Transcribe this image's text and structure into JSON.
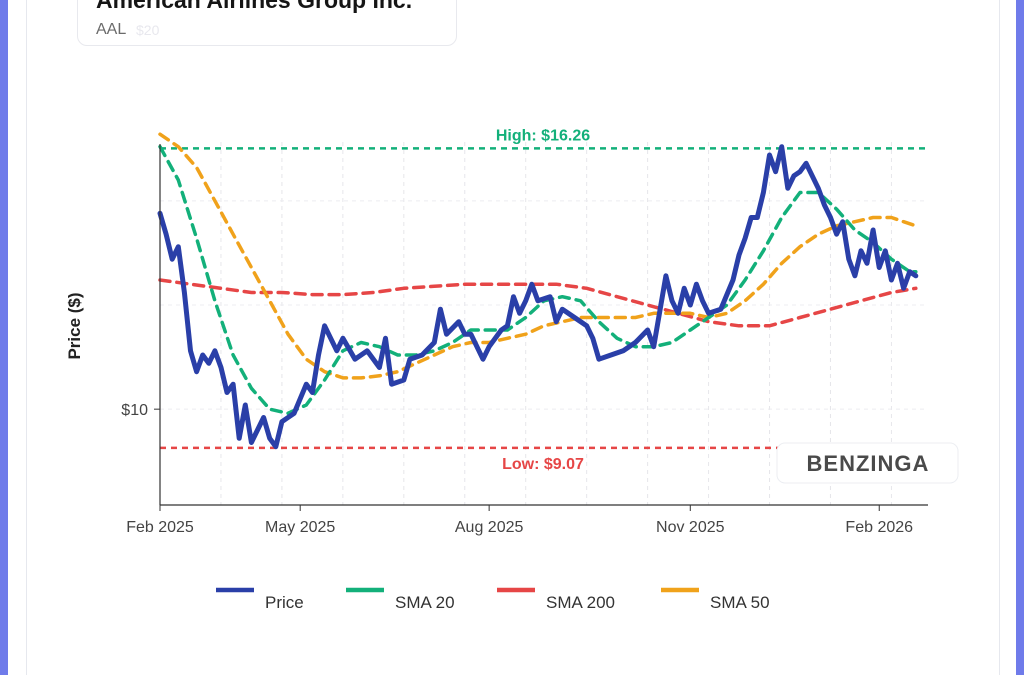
{
  "header": {
    "company": "American Airlines Group Inc.",
    "ticker": "AAL",
    "ticker_ghost": "$20"
  },
  "watermark": "BENZINGA",
  "colors": {
    "price": "#2a3fa8",
    "sma20": "#13b07a",
    "sma200": "#e64646",
    "sma50": "#f0a21b",
    "high": "#13b07a",
    "low": "#e64646"
  },
  "chart_data": {
    "type": "line",
    "ylabel": "Price ($)",
    "xlabel": "",
    "x_range": [
      0,
      12.6
    ],
    "y_range": [
      7.7,
      16.7
    ],
    "x_ticks": [
      {
        "x": 0,
        "label": "Feb 2025"
      },
      {
        "x": 2.3,
        "label": "May 2025"
      },
      {
        "x": 5.4,
        "label": "Aug 2025"
      },
      {
        "x": 8.7,
        "label": "Nov 2025"
      },
      {
        "x": 11.8,
        "label": "Feb 2026"
      }
    ],
    "y_ticks": [
      {
        "y": 10,
        "label": "$10"
      }
    ],
    "high": {
      "value": 16.26,
      "label": "High: $16.26"
    },
    "low": {
      "value": 9.07,
      "label": "Low: $9.07"
    },
    "series": [
      {
        "key": "price",
        "name": "Price",
        "points": [
          [
            0,
            14.7
          ],
          [
            0.1,
            14.2
          ],
          [
            0.2,
            13.6
          ],
          [
            0.3,
            13.9
          ],
          [
            0.4,
            12.8
          ],
          [
            0.5,
            11.4
          ],
          [
            0.6,
            10.9
          ],
          [
            0.7,
            11.3
          ],
          [
            0.8,
            11.1
          ],
          [
            0.9,
            11.4
          ],
          [
            1.0,
            11.0
          ],
          [
            1.1,
            10.4
          ],
          [
            1.2,
            10.6
          ],
          [
            1.3,
            9.3
          ],
          [
            1.4,
            10.1
          ],
          [
            1.5,
            9.2
          ],
          [
            1.6,
            9.5
          ],
          [
            1.7,
            9.8
          ],
          [
            1.8,
            9.3
          ],
          [
            1.9,
            9.1
          ],
          [
            2.0,
            9.7
          ],
          [
            2.1,
            9.8
          ],
          [
            2.2,
            9.9
          ],
          [
            2.4,
            10.6
          ],
          [
            2.5,
            10.4
          ],
          [
            2.6,
            11.3
          ],
          [
            2.7,
            12.0
          ],
          [
            2.8,
            11.7
          ],
          [
            2.9,
            11.4
          ],
          [
            3.0,
            11.7
          ],
          [
            3.2,
            11.2
          ],
          [
            3.4,
            11.4
          ],
          [
            3.6,
            11.0
          ],
          [
            3.7,
            11.7
          ],
          [
            3.8,
            10.6
          ],
          [
            4.0,
            10.7
          ],
          [
            4.1,
            11.2
          ],
          [
            4.3,
            11.3
          ],
          [
            4.5,
            11.6
          ],
          [
            4.6,
            12.4
          ],
          [
            4.7,
            11.8
          ],
          [
            4.9,
            12.1
          ],
          [
            5.0,
            11.8
          ],
          [
            5.1,
            11.8
          ],
          [
            5.3,
            11.2
          ],
          [
            5.4,
            11.5
          ],
          [
            5.5,
            11.7
          ],
          [
            5.6,
            11.9
          ],
          [
            5.7,
            12.0
          ],
          [
            5.8,
            12.7
          ],
          [
            5.9,
            12.3
          ],
          [
            6.0,
            12.6
          ],
          [
            6.1,
            13.0
          ],
          [
            6.2,
            12.6
          ],
          [
            6.4,
            12.7
          ],
          [
            6.5,
            12.1
          ],
          [
            6.6,
            12.4
          ],
          [
            6.8,
            12.2
          ],
          [
            7.0,
            12.0
          ],
          [
            7.1,
            11.7
          ],
          [
            7.2,
            11.2
          ],
          [
            7.4,
            11.3
          ],
          [
            7.6,
            11.4
          ],
          [
            7.8,
            11.6
          ],
          [
            8.0,
            11.9
          ],
          [
            8.1,
            11.5
          ],
          [
            8.3,
            13.2
          ],
          [
            8.4,
            12.6
          ],
          [
            8.5,
            12.3
          ],
          [
            8.6,
            12.9
          ],
          [
            8.7,
            12.5
          ],
          [
            8.8,
            13.0
          ],
          [
            8.9,
            12.6
          ],
          [
            9.0,
            12.3
          ],
          [
            9.2,
            12.4
          ],
          [
            9.4,
            13.1
          ],
          [
            9.5,
            13.7
          ],
          [
            9.6,
            14.1
          ],
          [
            9.7,
            14.6
          ],
          [
            9.8,
            14.6
          ],
          [
            9.9,
            15.2
          ],
          [
            10.0,
            16.1
          ],
          [
            10.1,
            15.7
          ],
          [
            10.2,
            16.3
          ],
          [
            10.3,
            15.3
          ],
          [
            10.4,
            15.6
          ],
          [
            10.5,
            15.7
          ],
          [
            10.6,
            15.9
          ],
          [
            10.7,
            15.6
          ],
          [
            10.8,
            15.3
          ],
          [
            10.9,
            14.9
          ],
          [
            11.0,
            14.6
          ],
          [
            11.1,
            14.2
          ],
          [
            11.2,
            14.5
          ],
          [
            11.3,
            13.6
          ],
          [
            11.4,
            13.2
          ],
          [
            11.5,
            13.8
          ],
          [
            11.6,
            13.5
          ],
          [
            11.7,
            14.3
          ],
          [
            11.8,
            13.4
          ],
          [
            11.9,
            13.8
          ],
          [
            12.0,
            13.1
          ],
          [
            12.1,
            13.5
          ],
          [
            12.2,
            12.9
          ],
          [
            12.3,
            13.3
          ],
          [
            12.4,
            13.2
          ]
        ]
      },
      {
        "key": "sma20",
        "name": "SMA 20",
        "points": [
          [
            0,
            16.3
          ],
          [
            0.3,
            15.5
          ],
          [
            0.6,
            14.1
          ],
          [
            0.9,
            12.6
          ],
          [
            1.2,
            11.3
          ],
          [
            1.5,
            10.5
          ],
          [
            1.8,
            10.0
          ],
          [
            2.1,
            9.9
          ],
          [
            2.4,
            10.1
          ],
          [
            2.7,
            10.7
          ],
          [
            3.0,
            11.4
          ],
          [
            3.3,
            11.6
          ],
          [
            3.6,
            11.5
          ],
          [
            3.9,
            11.3
          ],
          [
            4.2,
            11.3
          ],
          [
            4.5,
            11.4
          ],
          [
            4.8,
            11.6
          ],
          [
            5.1,
            11.9
          ],
          [
            5.4,
            11.9
          ],
          [
            5.7,
            11.9
          ],
          [
            6.0,
            12.2
          ],
          [
            6.3,
            12.6
          ],
          [
            6.6,
            12.7
          ],
          [
            6.9,
            12.6
          ],
          [
            7.2,
            12.1
          ],
          [
            7.5,
            11.7
          ],
          [
            7.8,
            11.5
          ],
          [
            8.1,
            11.5
          ],
          [
            8.4,
            11.6
          ],
          [
            8.7,
            11.9
          ],
          [
            9.0,
            12.2
          ],
          [
            9.3,
            12.5
          ],
          [
            9.6,
            13.1
          ],
          [
            9.9,
            13.8
          ],
          [
            10.2,
            14.6
          ],
          [
            10.5,
            15.2
          ],
          [
            10.8,
            15.2
          ],
          [
            11.1,
            14.8
          ],
          [
            11.4,
            14.3
          ],
          [
            11.7,
            14.0
          ],
          [
            12.0,
            13.6
          ],
          [
            12.3,
            13.3
          ],
          [
            12.4,
            13.3
          ]
        ]
      },
      {
        "key": "sma200",
        "name": "SMA 200",
        "points": [
          [
            0,
            13.1
          ],
          [
            0.5,
            13.0
          ],
          [
            1.0,
            12.9
          ],
          [
            1.5,
            12.8
          ],
          [
            2.0,
            12.8
          ],
          [
            2.5,
            12.75
          ],
          [
            3.0,
            12.75
          ],
          [
            3.5,
            12.8
          ],
          [
            4.0,
            12.9
          ],
          [
            4.5,
            12.95
          ],
          [
            5.0,
            13.0
          ],
          [
            5.5,
            13.0
          ],
          [
            6.0,
            13.0
          ],
          [
            6.5,
            13.0
          ],
          [
            7.0,
            12.9
          ],
          [
            7.5,
            12.7
          ],
          [
            8.0,
            12.5
          ],
          [
            8.5,
            12.3
          ],
          [
            9.0,
            12.1
          ],
          [
            9.5,
            12.0
          ],
          [
            10.0,
            12.0
          ],
          [
            10.5,
            12.2
          ],
          [
            11.0,
            12.4
          ],
          [
            11.5,
            12.6
          ],
          [
            12.0,
            12.8
          ],
          [
            12.4,
            12.9
          ]
        ]
      },
      {
        "key": "sma50",
        "name": "SMA 50",
        "points": [
          [
            0,
            16.6
          ],
          [
            0.3,
            16.3
          ],
          [
            0.6,
            15.8
          ],
          [
            0.9,
            15.0
          ],
          [
            1.2,
            14.2
          ],
          [
            1.5,
            13.4
          ],
          [
            1.8,
            12.6
          ],
          [
            2.1,
            11.8
          ],
          [
            2.4,
            11.2
          ],
          [
            2.7,
            10.9
          ],
          [
            3.0,
            10.75
          ],
          [
            3.3,
            10.75
          ],
          [
            3.6,
            10.8
          ],
          [
            3.9,
            10.9
          ],
          [
            4.2,
            11.1
          ],
          [
            4.5,
            11.3
          ],
          [
            4.8,
            11.5
          ],
          [
            5.1,
            11.6
          ],
          [
            5.4,
            11.6
          ],
          [
            5.7,
            11.7
          ],
          [
            6.0,
            11.8
          ],
          [
            6.3,
            12.0
          ],
          [
            6.6,
            12.1
          ],
          [
            6.9,
            12.2
          ],
          [
            7.2,
            12.2
          ],
          [
            7.5,
            12.2
          ],
          [
            7.8,
            12.2
          ],
          [
            8.1,
            12.3
          ],
          [
            8.4,
            12.3
          ],
          [
            8.7,
            12.3
          ],
          [
            9.0,
            12.2
          ],
          [
            9.3,
            12.3
          ],
          [
            9.6,
            12.6
          ],
          [
            9.9,
            13.0
          ],
          [
            10.2,
            13.5
          ],
          [
            10.5,
            13.9
          ],
          [
            10.8,
            14.2
          ],
          [
            11.1,
            14.4
          ],
          [
            11.4,
            14.5
          ],
          [
            11.7,
            14.6
          ],
          [
            12.0,
            14.6
          ],
          [
            12.2,
            14.5
          ],
          [
            12.4,
            14.4
          ]
        ]
      }
    ],
    "legend": [
      {
        "key": "price",
        "label": "Price"
      },
      {
        "key": "sma20",
        "label": "SMA 20"
      },
      {
        "key": "sma200",
        "label": "SMA 200"
      },
      {
        "key": "sma50",
        "label": "SMA 50"
      }
    ],
    "legend_position": "bottom"
  }
}
